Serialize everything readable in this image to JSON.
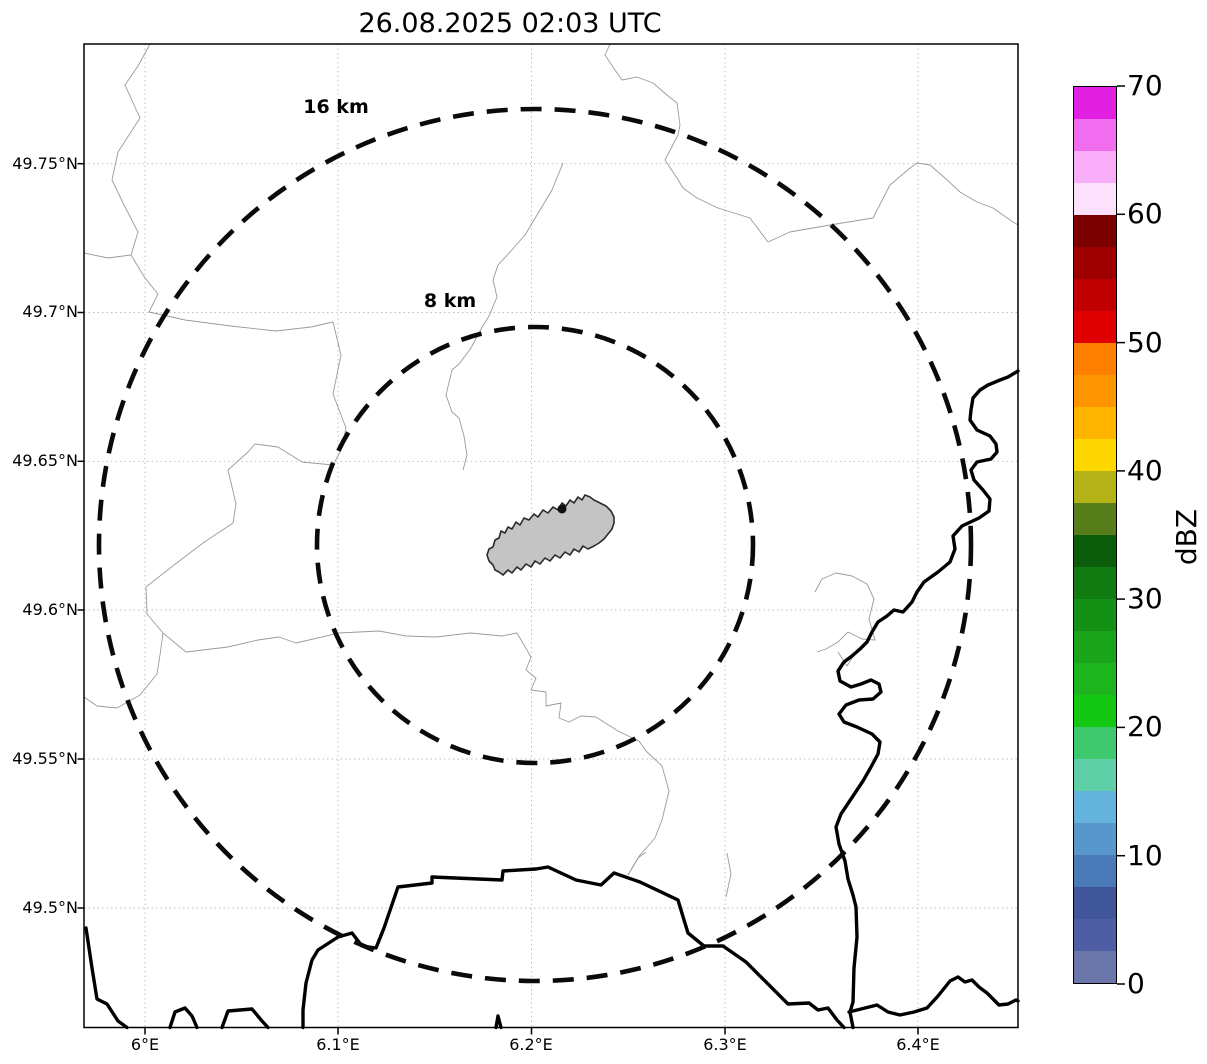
{
  "title": "26.08.2025 02:03 UTC",
  "map": {
    "x_axis": {
      "ticks": [
        "6°E",
        "6.1°E",
        "6.2°E",
        "6.3°E",
        "6.4°E"
      ]
    },
    "y_axis": {
      "ticks": [
        "49.75°N",
        "49.7°N",
        "49.65°N",
        "49.6°N",
        "49.55°N",
        "49.5°N"
      ]
    },
    "range_rings": {
      "outer_label": "16 km",
      "inner_label": "8 km"
    },
    "radar_echoes": "none visible"
  },
  "colorbar": {
    "label": "dBZ",
    "min": 0,
    "max": 70,
    "segment_step_dbz": 2.5,
    "ticks": [
      "0",
      "10",
      "20",
      "30",
      "40",
      "50",
      "60",
      "70"
    ],
    "segments_bottom_to_top": [
      "#6b76ab",
      "#4e5da4",
      "#40569b",
      "#4a7bb8",
      "#5897cb",
      "#63b3dc",
      "#5ecfa7",
      "#3fc96e",
      "#13c713",
      "#1eb41e",
      "#1aa41a",
      "#149114",
      "#117a11",
      "#0b5c0b",
      "#567d1a",
      "#b3b317",
      "#ffd700",
      "#ffb400",
      "#ff9500",
      "#ff7f00",
      "#e00000",
      "#c00000",
      "#9e0000",
      "#7c0000",
      "#fce1fc",
      "#f9aef9",
      "#f06df0",
      "#e120e1"
    ]
  },
  "style_colors": {
    "country_border": "#000000",
    "admin_boundary": "#9a9a9a",
    "range_ring": "#0a0a0a",
    "airport_fill": "#c4c4c4",
    "airport_stroke": "#2b2b2b"
  }
}
